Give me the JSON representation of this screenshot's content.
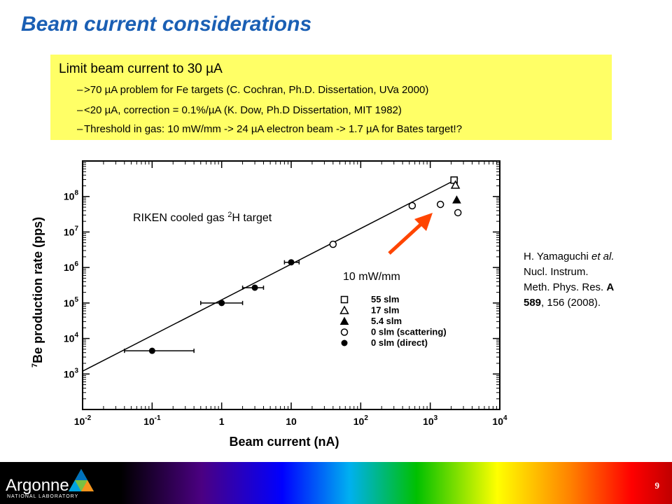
{
  "slide": {
    "title": "Beam current considerations",
    "page_number": "9"
  },
  "box": {
    "main": "Limit beam current to 30 µA",
    "bullets": [
      ">70 µA problem for Fe targets (C. Cochran, Ph.D. Dissertation, UVa 2000)",
      "<20 µA, correction = 0.1%/µA  (K. Dow, Ph.D Dissertation, MIT 1982)",
      "Threshold in gas: 10 mW/mm -> 24 µA electron beam    ->  1.7 µA for Bates target!?"
    ],
    "dash": "–"
  },
  "reference": {
    "line1_a": "H. Yamaguchi ",
    "line1_b": "et al.",
    "line2": "Nucl. Instrum.",
    "line3_a": "Meth. Phys. Res. ",
    "line3_b": "A",
    "line4_a": "589",
    "line4_b": ", 156 (2008)."
  },
  "logo": {
    "name": "Argonne",
    "sub": "NATIONAL LABORATORY"
  },
  "chart_data": {
    "type": "scatter",
    "xlabel": "Beam current (nA)",
    "ylabel": "7Be production rate (pps)",
    "ylabel_sup": "7",
    "ylabel_main": "Be production rate (pps)",
    "x_scale": "log",
    "y_scale": "log",
    "xlim": [
      0.01,
      10000
    ],
    "ylim": [
      100,
      1000000000
    ],
    "x_ticks": [
      {
        "value": 0.01,
        "base": "10",
        "exp": "-2"
      },
      {
        "value": 0.1,
        "base": "10",
        "exp": "-1"
      },
      {
        "value": 1,
        "base": "1",
        "exp": ""
      },
      {
        "value": 10,
        "base": "10",
        "exp": ""
      },
      {
        "value": 100,
        "base": "10",
        "exp": "2"
      },
      {
        "value": 1000,
        "base": "10",
        "exp": "3"
      },
      {
        "value": 10000,
        "base": "10",
        "exp": "4"
      }
    ],
    "y_ticks": [
      {
        "value": 1000,
        "base": "10",
        "exp": "3"
      },
      {
        "value": 10000,
        "base": "10",
        "exp": "4"
      },
      {
        "value": 100000,
        "base": "10",
        "exp": "5"
      },
      {
        "value": 1000000,
        "base": "10",
        "exp": "6"
      },
      {
        "value": 10000000,
        "base": "10",
        "exp": "7"
      },
      {
        "value": 100000000,
        "base": "10",
        "exp": "8"
      }
    ],
    "series": [
      {
        "name": "55 slm",
        "marker": "square-open",
        "points": [
          {
            "x": 2200,
            "y": 290000000
          }
        ]
      },
      {
        "name": "17 slm",
        "marker": "triangle-open",
        "points": [
          {
            "x": 2300,
            "y": 210000000
          }
        ]
      },
      {
        "name": "5.4 slm",
        "marker": "triangle-filled",
        "points": [
          {
            "x": 2400,
            "y": 80000000
          }
        ]
      },
      {
        "name": "0 slm (scattering)",
        "marker": "circle-open",
        "points": [
          {
            "x": 40,
            "y": 4500000
          },
          {
            "x": 550,
            "y": 55000000
          },
          {
            "x": 1400,
            "y": 60000000
          },
          {
            "x": 2500,
            "y": 35000000
          }
        ]
      },
      {
        "name": "0 slm (direct)",
        "marker": "circle-filled",
        "points": [
          {
            "x": 0.1,
            "y": 4500,
            "xerr": [
              0.04,
              0.4
            ]
          },
          {
            "x": 1.0,
            "y": 100000,
            "xerr": [
              0.5,
              2.0
            ]
          },
          {
            "x": 3.0,
            "y": 270000,
            "xerr": [
              2.0,
              4.0
            ]
          },
          {
            "x": 10,
            "y": 1400000,
            "xerr": [
              8,
              13
            ]
          }
        ]
      }
    ],
    "fit_line": {
      "x": [
        0.01,
        2500
      ],
      "y": [
        1200,
        320000000
      ]
    },
    "annotations": [
      {
        "text_main": "RIKEN cooled gas ",
        "text_sup": "2",
        "text_after": "H target"
      },
      {
        "text_main": "10 mW/mm",
        "text_sup": "",
        "text_after": ""
      }
    ],
    "arrow_color": "#ff4500"
  }
}
